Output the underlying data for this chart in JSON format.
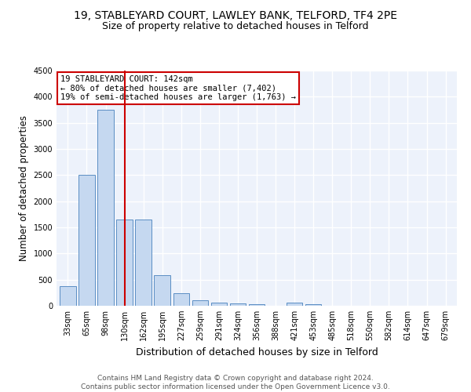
{
  "title1": "19, STABLEYARD COURT, LAWLEY BANK, TELFORD, TF4 2PE",
  "title2": "Size of property relative to detached houses in Telford",
  "xlabel": "Distribution of detached houses by size in Telford",
  "ylabel": "Number of detached properties",
  "categories": [
    "33sqm",
    "65sqm",
    "98sqm",
    "130sqm",
    "162sqm",
    "195sqm",
    "227sqm",
    "259sqm",
    "291sqm",
    "324sqm",
    "356sqm",
    "388sqm",
    "421sqm",
    "453sqm",
    "485sqm",
    "518sqm",
    "550sqm",
    "582sqm",
    "614sqm",
    "647sqm",
    "679sqm"
  ],
  "values": [
    380,
    2500,
    3750,
    1650,
    1650,
    580,
    240,
    100,
    55,
    40,
    30,
    0,
    55,
    30,
    0,
    0,
    0,
    0,
    0,
    0,
    0
  ],
  "bar_color": "#c5d8f0",
  "bar_edge_color": "#5b8ec4",
  "vline_x": 3.0,
  "vline_color": "#cc0000",
  "annotation_text": "19 STABLEYARD COURT: 142sqm\n← 80% of detached houses are smaller (7,402)\n19% of semi-detached houses are larger (1,763) →",
  "annotation_box_color": "#ffffff",
  "annotation_box_edge": "#cc0000",
  "ylim": [
    0,
    4500
  ],
  "yticks": [
    0,
    500,
    1000,
    1500,
    2000,
    2500,
    3000,
    3500,
    4000,
    4500
  ],
  "background_color": "#edf2fb",
  "grid_color": "#ffffff",
  "footer": "Contains HM Land Registry data © Crown copyright and database right 2024.\nContains public sector information licensed under the Open Government Licence v3.0.",
  "title1_fontsize": 10,
  "title2_fontsize": 9,
  "xlabel_fontsize": 9,
  "ylabel_fontsize": 8.5,
  "tick_fontsize": 7,
  "footer_fontsize": 6.5,
  "annot_fontsize": 7.5
}
